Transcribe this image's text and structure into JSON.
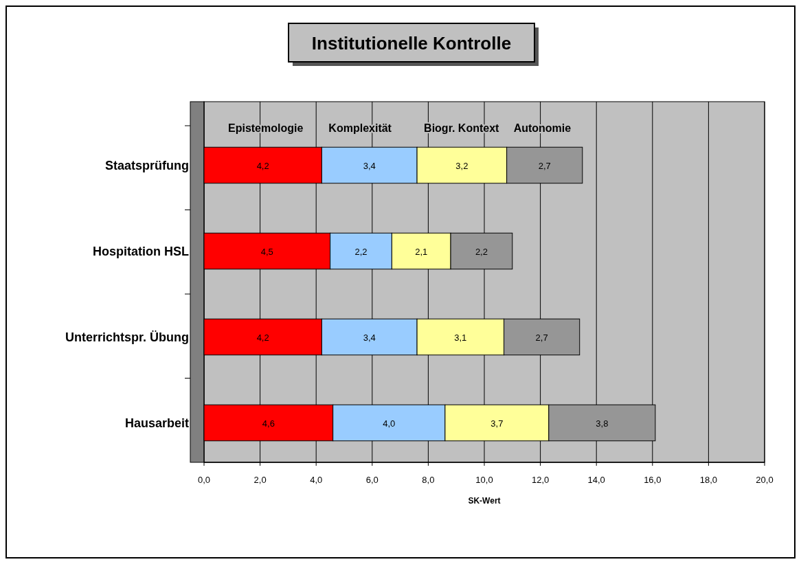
{
  "chart_data": {
    "type": "bar",
    "orientation": "horizontal",
    "stacked": true,
    "title": "Institutionelle Kontrolle",
    "xlabel": "SK-Wert",
    "categories": [
      "Staatsprüfung",
      "Hospitation HSL",
      "Unterrichtspr. Übung",
      "Hausarbeit"
    ],
    "series": [
      {
        "name": "Epistemologie",
        "color": "#ff0000",
        "values": [
          4.2,
          4.5,
          4.2,
          4.6
        ],
        "value_labels": [
          "4,2",
          "4,5",
          "4,2",
          "4,6"
        ]
      },
      {
        "name": "Komplexität",
        "color": "#99ccff",
        "values": [
          3.4,
          2.2,
          3.4,
          4.0
        ],
        "value_labels": [
          "3,4",
          "2,2",
          "3,4",
          "4,0"
        ]
      },
      {
        "name": "Biogr. Kontext",
        "color": "#ffff99",
        "values": [
          3.2,
          2.1,
          3.1,
          3.7
        ],
        "value_labels": [
          "3,2",
          "2,1",
          "3,1",
          "3,7"
        ]
      },
      {
        "name": "Autonomie",
        "color": "#969696",
        "values": [
          2.7,
          2.2,
          2.7,
          3.8
        ],
        "value_labels": [
          "2,7",
          "2,2",
          "2,7",
          "3,8"
        ]
      }
    ],
    "xlim": [
      0,
      20
    ],
    "xticks": [
      {
        "value": 0,
        "label": "0,0"
      },
      {
        "value": 2,
        "label": "2,0"
      },
      {
        "value": 4,
        "label": "4,0"
      },
      {
        "value": 6,
        "label": "6,0"
      },
      {
        "value": 8,
        "label": "8,0"
      },
      {
        "value": 10,
        "label": "10,0"
      },
      {
        "value": 12,
        "label": "12,0"
      },
      {
        "value": 14,
        "label": "14,0"
      },
      {
        "value": 16,
        "label": "16,0"
      },
      {
        "value": 18,
        "label": "18,0"
      },
      {
        "value": 20,
        "label": "20,0"
      }
    ],
    "grid": "x"
  }
}
